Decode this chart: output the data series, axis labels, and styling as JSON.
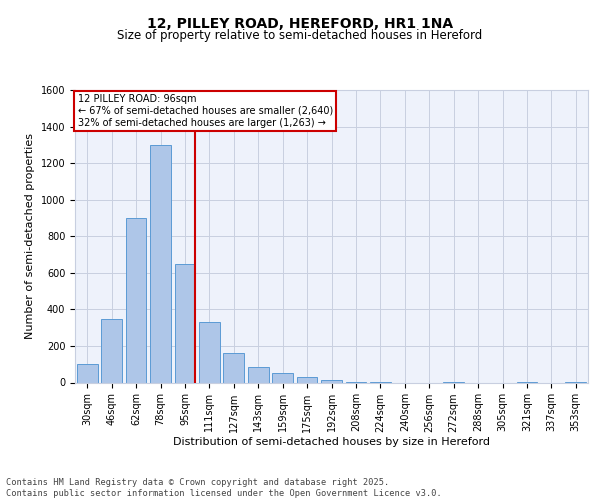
{
  "title": "12, PILLEY ROAD, HEREFORD, HR1 1NA",
  "subtitle": "Size of property relative to semi-detached houses in Hereford",
  "xlabel": "Distribution of semi-detached houses by size in Hereford",
  "ylabel": "Number of semi-detached properties",
  "categories": [
    "30sqm",
    "46sqm",
    "62sqm",
    "78sqm",
    "95sqm",
    "111sqm",
    "127sqm",
    "143sqm",
    "159sqm",
    "175sqm",
    "192sqm",
    "208sqm",
    "224sqm",
    "240sqm",
    "256sqm",
    "272sqm",
    "288sqm",
    "305sqm",
    "321sqm",
    "337sqm",
    "353sqm"
  ],
  "values": [
    100,
    350,
    900,
    1300,
    650,
    330,
    160,
    85,
    50,
    30,
    15,
    5,
    5,
    0,
    0,
    5,
    0,
    0,
    5,
    0,
    5
  ],
  "bar_color": "#aec6e8",
  "bar_edge_color": "#5b9bd5",
  "vline_bin_index": 4,
  "annotation_title": "12 PILLEY ROAD: 96sqm",
  "annotation_line1": "← 67% of semi-detached houses are smaller (2,640)",
  "annotation_line2": "32% of semi-detached houses are larger (1,263) →",
  "annotation_color": "#cc0000",
  "ylim": [
    0,
    1600
  ],
  "yticks": [
    0,
    200,
    400,
    600,
    800,
    1000,
    1200,
    1400,
    1600
  ],
  "footer": "Contains HM Land Registry data © Crown copyright and database right 2025.\nContains public sector information licensed under the Open Government Licence v3.0.",
  "bg_color": "#eef2fb",
  "grid_color": "#c8cfe0",
  "title_fontsize": 10,
  "subtitle_fontsize": 8.5,
  "ylabel_fontsize": 8,
  "xlabel_fontsize": 8,
  "tick_fontsize": 7,
  "annotation_fontsize": 7
}
